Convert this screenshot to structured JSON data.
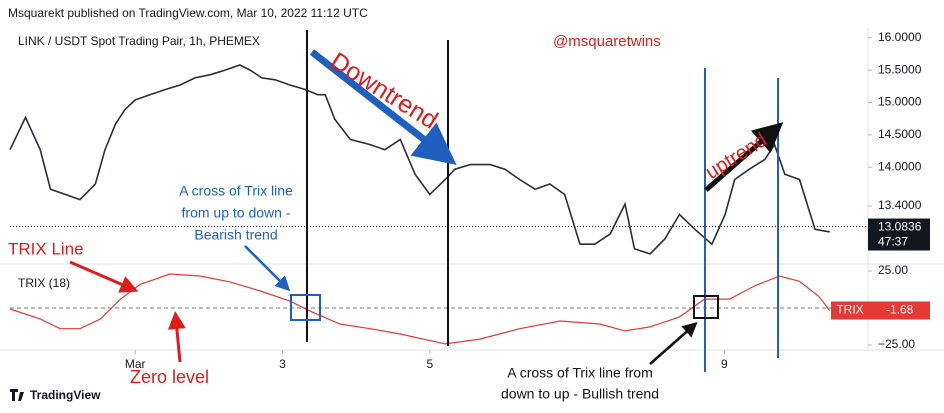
{
  "header": "Msquarekt published on TradingView.com, Mar 10, 2022 11:12 UTC",
  "brand": "TradingView",
  "chart_data": [
    {
      "type": "line",
      "title": "LINK / USDT Spot Trading Pair, 1h, PHEMEX",
      "color": "#2a2e39",
      "x": [
        -0.7,
        -0.49,
        -0.29,
        -0.15,
        0.05,
        0.25,
        0.46,
        0.59,
        0.73,
        0.86,
        1.0,
        1.2,
        1.41,
        1.61,
        1.81,
        2.02,
        2.22,
        2.42,
        2.56,
        2.72,
        2.9,
        3.1,
        3.31,
        3.48,
        3.58,
        3.71,
        3.92,
        4.19,
        4.39,
        4.6,
        4.8,
        5.0,
        5.21,
        5.34,
        5.55,
        5.82,
        6.02,
        6.22,
        6.43,
        6.63,
        6.83,
        7.04,
        7.24,
        7.45,
        7.65,
        7.78,
        7.99,
        8.19,
        8.39,
        8.6,
        8.83,
        9.01,
        9.14,
        9.34,
        9.55,
        9.68,
        9.82,
        10.02,
        10.23,
        10.43
      ],
      "values": [
        14.27,
        14.77,
        14.27,
        13.66,
        13.58,
        13.5,
        13.74,
        14.27,
        14.66,
        14.89,
        15.04,
        15.12,
        15.2,
        15.27,
        15.38,
        15.43,
        15.5,
        15.58,
        15.5,
        15.38,
        15.35,
        15.27,
        15.2,
        15.12,
        15.12,
        14.74,
        14.43,
        14.35,
        14.27,
        14.43,
        13.89,
        13.58,
        13.81,
        13.97,
        14.04,
        14.04,
        13.97,
        13.81,
        13.66,
        13.74,
        13.58,
        12.81,
        12.81,
        12.97,
        13.43,
        12.74,
        12.66,
        12.89,
        13.27,
        13.04,
        12.81,
        13.27,
        13.81,
        13.97,
        14.12,
        14.35,
        13.89,
        13.81,
        13.04,
        13.0
      ],
      "xlim": [
        -0.7,
        10.95
      ],
      "ylim": [
        12.52,
        16.12
      ],
      "yticks": [
        {
          "value": 16,
          "label": "16.0000"
        },
        {
          "value": 15.5,
          "label": "15.5000"
        },
        {
          "value": 15,
          "label": "15.0000"
        },
        {
          "value": 14.5,
          "label": "14.5000"
        },
        {
          "value": 14,
          "label": "14.0000"
        },
        {
          "value": 13.4,
          "label": "13.4000"
        }
      ],
      "current_value": 13.0836,
      "countdown": "47:37"
    },
    {
      "type": "line",
      "title": "TRIX (18)",
      "color": "#e53935",
      "x": [
        -0.7,
        -0.29,
        -0.02,
        0.25,
        0.53,
        0.8,
        1.07,
        1.47,
        1.88,
        2.29,
        2.7,
        3.1,
        3.37,
        3.78,
        4.19,
        4.6,
        5.21,
        5.68,
        6.22,
        6.77,
        7.31,
        7.65,
        7.99,
        8.39,
        8.73,
        9.07,
        9.41,
        9.75,
        10.02,
        10.29,
        10.43
      ],
      "values": [
        -0.7,
        -7.4,
        -14,
        -14,
        -7.4,
        6,
        16,
        23,
        21.6,
        17.6,
        11.5,
        4.7,
        -2,
        -10.8,
        -14,
        -17.6,
        -24.3,
        -21,
        -14,
        -8.8,
        -10.8,
        -15.5,
        -12.8,
        -6,
        6,
        6,
        14.9,
        21.6,
        18,
        7.4,
        -1.68
      ],
      "xlim": [
        -0.7,
        10.95
      ],
      "ylim": [
        -28.4,
        29.05
      ],
      "yticks": [
        {
          "value": 25,
          "label": "25.00"
        },
        {
          "value": -25,
          "label": "−25.00"
        }
      ],
      "xticks": [
        {
          "value": 1,
          "label": "Mar"
        },
        3,
        5,
        9
      ],
      "zero_line": 0,
      "indicator_tag": "TRIX",
      "current_value": -1.68
    }
  ],
  "annotations": {
    "handle": "@msquaretwins",
    "downtrend": "Downtrend",
    "uptrend": "uptrend",
    "trix_line": "TRIX Line",
    "zero_level": "Zero level",
    "bearish_note": [
      "A cross of Trix line",
      "from up to down -",
      "Bearish trend"
    ],
    "bullish_note": [
      "A cross of Trix line from",
      "down to up - Bullish trend"
    ]
  }
}
